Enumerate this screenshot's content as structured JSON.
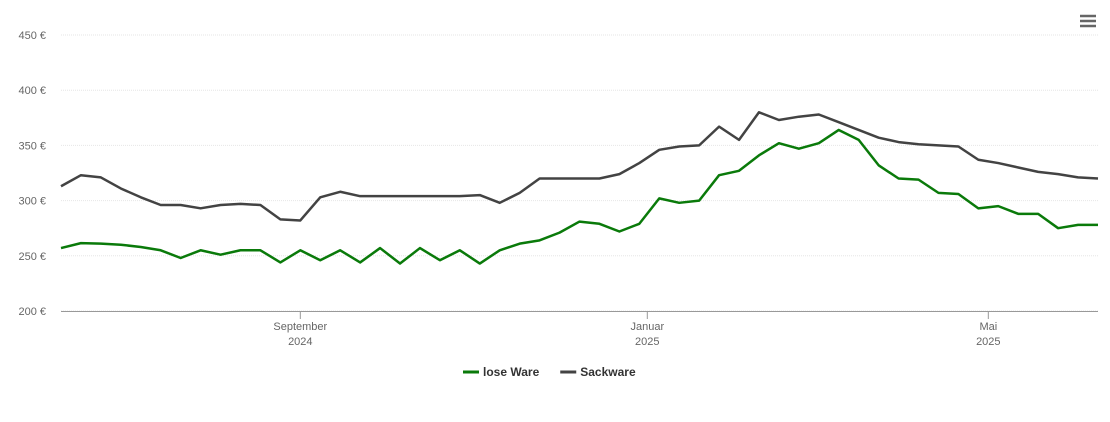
{
  "chart_data": {
    "type": "line",
    "categories": [
      null,
      null,
      null,
      null,
      null,
      null,
      null,
      null,
      null,
      null,
      null,
      null,
      null,
      null,
      null,
      null,
      null,
      null,
      null,
      null,
      null,
      null,
      null,
      null,
      null,
      null,
      null,
      null,
      null,
      null,
      null,
      null,
      null,
      null,
      null,
      null,
      null,
      null,
      null,
      null,
      null,
      null,
      null,
      null,
      null,
      null,
      null,
      null,
      null,
      null,
      null,
      null,
      null
    ],
    "series": [
      {
        "name": "lose Ware",
        "color": "#0a7a0a",
        "values": [
          257,
          261.5,
          261,
          260,
          258,
          255,
          248,
          255,
          251,
          255,
          255,
          244,
          255,
          246,
          255,
          244,
          257,
          243,
          257,
          246,
          255,
          243,
          255,
          261,
          264,
          271,
          281,
          279,
          272,
          279,
          302,
          298,
          300,
          323,
          327,
          341,
          352,
          347,
          352,
          364,
          355,
          332,
          320,
          319,
          307,
          306,
          293,
          295,
          288,
          288,
          275,
          278,
          278
        ]
      },
      {
        "name": "Sackware",
        "color": "#434343",
        "values": [
          313,
          323,
          321,
          311,
          303,
          296,
          296,
          293,
          296,
          297,
          296,
          283,
          282,
          303,
          308,
          304,
          304,
          304,
          304,
          304,
          304,
          305,
          298,
          307,
          320,
          320,
          320,
          320,
          324,
          334,
          346,
          349,
          350,
          367,
          355,
          380,
          373,
          376,
          378,
          371,
          364,
          357,
          353,
          351,
          350,
          349,
          337,
          334,
          330,
          326,
          324,
          321,
          320
        ]
      }
    ],
    "xlim": [
      0,
      52
    ],
    "xticks": [
      {
        "value": 12,
        "label": [
          "September",
          "2024"
        ]
      },
      {
        "value": 29.4,
        "label": [
          "Januar",
          "2025"
        ]
      },
      {
        "value": 46.5,
        "label": [
          "Mai",
          "2025"
        ]
      }
    ],
    "ylim": [
      200,
      450
    ],
    "yticks": [
      {
        "value": 200,
        "label": "200 €"
      },
      {
        "value": 250,
        "label": "250 €"
      },
      {
        "value": 300,
        "label": "300 €"
      },
      {
        "value": 350,
        "label": "350 €"
      },
      {
        "value": 400,
        "label": "400 €"
      },
      {
        "value": 450,
        "label": "450 €"
      }
    ],
    "grid": true,
    "legend": "bottom"
  }
}
